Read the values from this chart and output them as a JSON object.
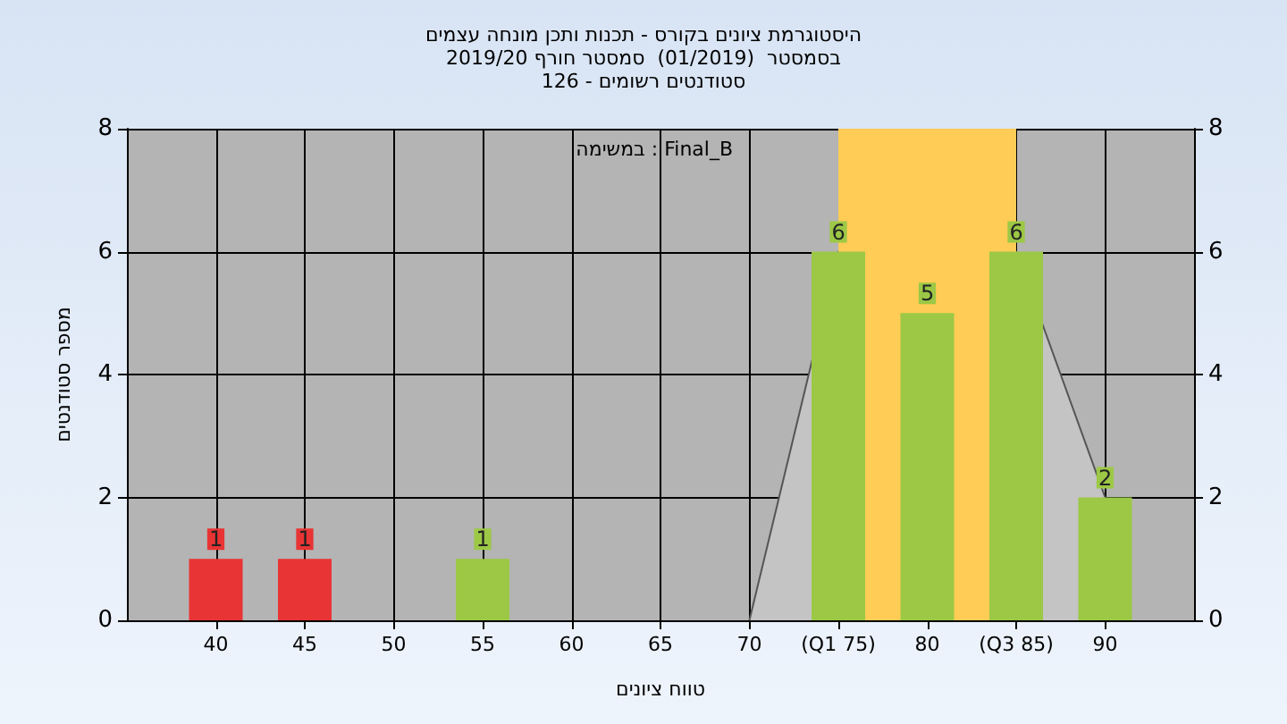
{
  "chart_data": {
    "type": "bar",
    "title": "היסטוגרמת ציונים בקורס - תכנות ותכן מונחה עצמים",
    "subtitle": "בסמסטר  (01/2019)  סמסטר חורף 2019/20\nסטודנטים רשומים - 126",
    "xlabel": "טווח ציונים",
    "ylabel": "מספר סטודנטים",
    "annotations": [
      "במשימה : Final_B"
    ],
    "x": [
      40,
      45,
      50,
      55,
      60,
      65,
      70,
      75,
      80,
      85,
      90
    ],
    "series": [
      {
        "type": "area",
        "color": "#c4c4c4",
        "x": [
          70,
          75,
          85,
          90
        ],
        "values": [
          0,
          6,
          6,
          2
        ]
      },
      {
        "value_labels": [
          "1",
          "1",
          null,
          "1",
          null,
          null,
          null,
          "6",
          "5",
          "6",
          "2"
        ],
        "colors": [
          "#e83434",
          "#e83434",
          "#9cc846",
          "#9cc846",
          "#9cc846",
          "#9cc846",
          "#9cc846",
          "#9cc846",
          "#9cc846",
          "#9cc846",
          "#9cc846"
        ],
        "values": [
          1,
          1,
          0,
          1,
          0,
          0,
          0,
          6,
          5,
          6,
          2
        ]
      }
    ],
    "bands": [
      {
        "axis": "x",
        "from": 75,
        "to": 85,
        "color": "#ffcc55"
      }
    ],
    "xlim": [
      35,
      95
    ],
    "xticks": [
      40,
      45,
      50,
      55,
      60,
      65,
      70,
      {
        "value": 75,
        "label": "(Q1 75)"
      },
      80,
      {
        "value": 85,
        "label": "(Q3 85)"
      },
      90
    ],
    "ylim": [
      0,
      8
    ],
    "yticks": [
      0,
      2,
      4,
      6,
      8
    ],
    "y2lim": [
      0,
      8
    ],
    "y2ticks": [
      0,
      2,
      4,
      6,
      8
    ],
    "grid": true
  }
}
